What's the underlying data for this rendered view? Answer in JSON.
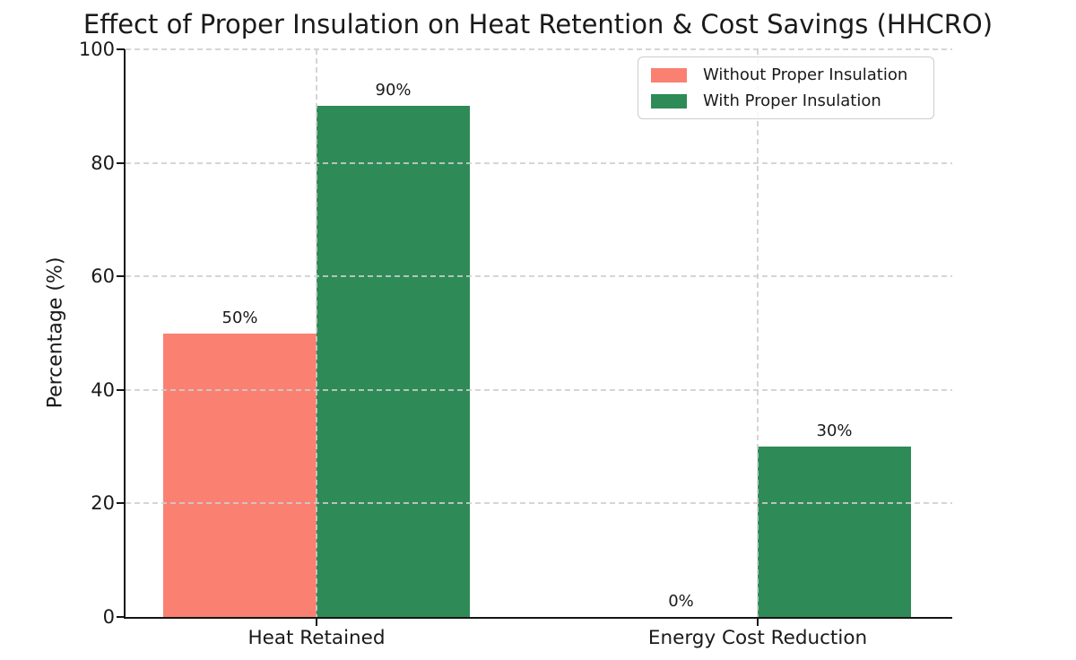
{
  "chart_data": {
    "type": "bar",
    "title": "Effect of Proper Insulation on Heat Retention & Cost Savings (HHCRO)",
    "xlabel": "",
    "ylabel": "Percentage (%)",
    "categories": [
      "Heat Retained",
      "Energy Cost Reduction"
    ],
    "series": [
      {
        "name": "Without Proper Insulation",
        "color": "#FA8072",
        "values": [
          50,
          0
        ],
        "value_labels": [
          "50%",
          "0%"
        ]
      },
      {
        "name": "With Proper Insulation",
        "color": "#2E8B57",
        "values": [
          90,
          30
        ],
        "value_labels": [
          "90%",
          "30%"
        ]
      }
    ],
    "ylim": [
      0,
      100
    ],
    "yticks": [
      0,
      20,
      40,
      60,
      80,
      100
    ],
    "grid": {
      "style": "dashed",
      "axes": "both",
      "color": "#d0d0d0",
      "drawn_over_bars": true
    },
    "legend": {
      "position": "upper right",
      "border_color": "#cccccc",
      "background": "#ffffff"
    },
    "axis_color": "#151515",
    "text_color": "#1a1a1a",
    "background_color": "#ffffff"
  }
}
